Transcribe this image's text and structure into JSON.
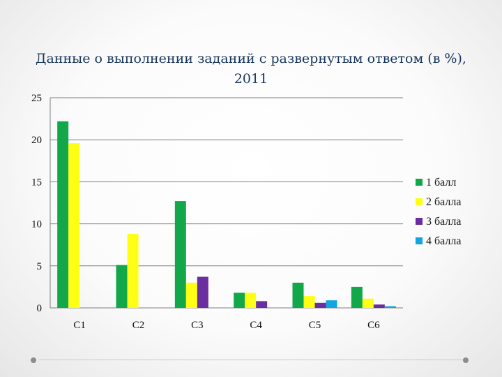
{
  "title": "Данные о выполнении заданий с развернутым ответом (в %), 2011",
  "chart_data": {
    "type": "bar",
    "title": "Данные о выполнении заданий с развернутым ответом (в %), 2011",
    "categories": [
      "С1",
      "С2",
      "С3",
      "С4",
      "С5",
      "С6"
    ],
    "series": [
      {
        "name": "1 балл",
        "color": "#12a84a",
        "values": [
          22.2,
          5.1,
          12.7,
          1.8,
          3.0,
          2.5
        ]
      },
      {
        "name": "2 балла",
        "color": "#ffff14",
        "values": [
          19.6,
          8.8,
          3.0,
          1.8,
          1.4,
          1.1
        ]
      },
      {
        "name": "3 балла",
        "color": "#6b2ea0",
        "values": [
          0,
          0,
          3.7,
          0.8,
          0.6,
          0.4
        ]
      },
      {
        "name": "4 балла",
        "color": "#12a5e2",
        "values": [
          0,
          0,
          0,
          0,
          0.9,
          0.2
        ]
      }
    ],
    "yticks": [
      "0",
      "5",
      "10",
      "15",
      "20",
      "25"
    ],
    "ylim": [
      0,
      25
    ],
    "grid": true,
    "legend": "right"
  }
}
